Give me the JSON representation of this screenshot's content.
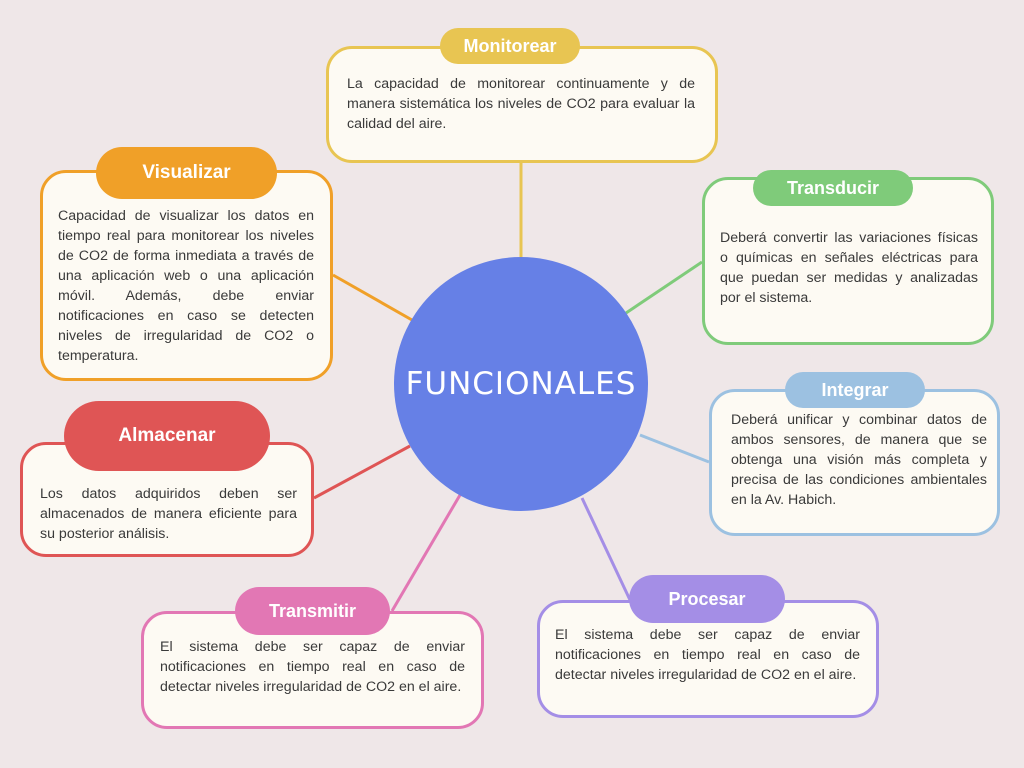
{
  "center": {
    "label": "FUNCIONALES",
    "color": "#6680e6"
  },
  "nodes": {
    "monitorear": {
      "title": "Monitorear",
      "text": "La capacidad de monitorear continuamente y de manera sistemática los niveles de CO2 para evaluar la calidad del aire.",
      "color": "#e8c552"
    },
    "visualizar": {
      "title": "Visualizar",
      "text": "Capacidad de visualizar los datos en tiempo real para monitorear los niveles de CO2 de forma inmediata a través de una aplicación web o una aplicación móvil. Además, debe enviar notificaciones en caso se detecten niveles de irregularidad de CO2 o temperatura.",
      "color": "#f0a028"
    },
    "transducir": {
      "title": "Transducir",
      "text": "Deberá convertir las variaciones físicas o químicas en señales eléctricas para que puedan ser medidas y analizadas por el sistema.",
      "color": "#7fcb7a"
    },
    "integrar": {
      "title": "Integrar",
      "text": "Deberá unificar y combinar datos de ambos sensores, de manera que se obtenga una visión más completa y precisa de las condiciones ambientales en la Av. Habich.",
      "color": "#9cc1e1"
    },
    "almacenar": {
      "title": "Almacenar",
      "text": "Los datos adquiridos deben ser almacenados de manera eficiente para su posterior análisis.",
      "color": "#df5555"
    },
    "transmitir": {
      "title": "Transmitir",
      "text": "El sistema debe ser capaz de enviar notificaciones en tiempo real en caso de detectar niveles irregularidad de CO2 en el aire.",
      "color": "#e277b4"
    },
    "procesar": {
      "title": "Procesar",
      "text": "El sistema debe ser capaz de enviar notificaciones en tiempo real en caso de detectar niveles irregularidad de CO2 en el aire.",
      "color": "#a48ee6"
    }
  }
}
